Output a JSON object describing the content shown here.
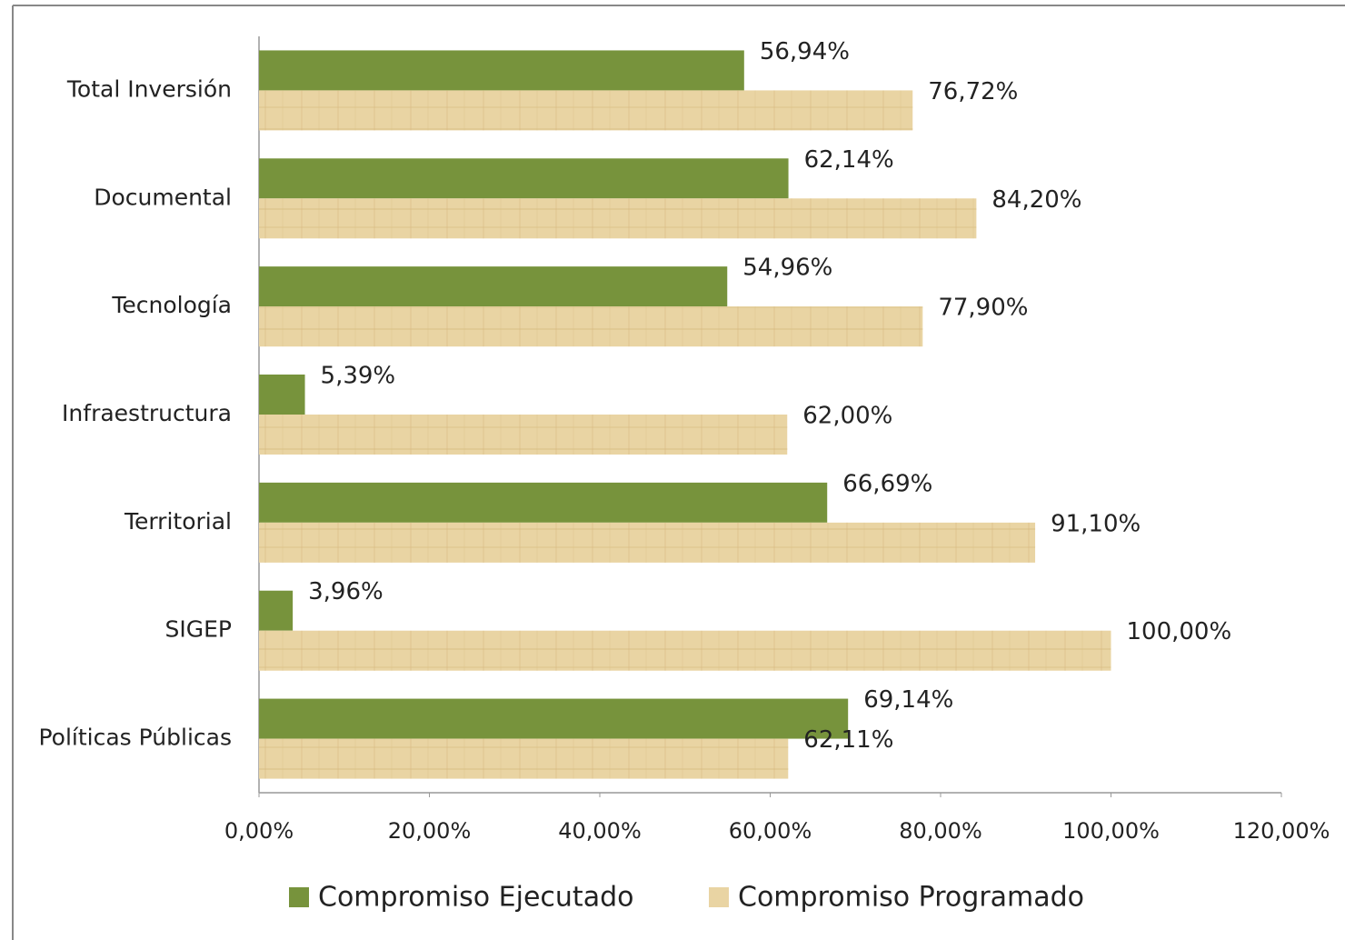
{
  "chart_data": {
    "type": "hbar",
    "categories": [
      "Total Inversión",
      "Documental",
      "Tecnología",
      "Infraestructura",
      "Territorial",
      "SIGEP",
      "Políticas Públicas"
    ],
    "series": [
      {
        "name": "Compromiso Ejecutado",
        "color": "#77933c",
        "values": [
          56.94,
          62.14,
          54.96,
          5.39,
          66.69,
          3.96,
          69.14
        ],
        "value_labels": [
          "56,94%",
          "62,14%",
          "54,96%",
          "5,39%",
          "66,69%",
          "3,96%",
          "69,14%"
        ]
      },
      {
        "name": "Compromiso Programado",
        "color": "#e9d4a3",
        "values": [
          76.72,
          84.2,
          77.9,
          62.0,
          91.1,
          100.0,
          62.11
        ],
        "value_labels": [
          "76,72%",
          "84,20%",
          "77,90%",
          "62,00%",
          "91,10%",
          "100,00%",
          "62,11%"
        ]
      }
    ],
    "xlim": [
      0,
      120
    ],
    "xticks": [
      {
        "value": 0,
        "label": "0,00%"
      },
      {
        "value": 20,
        "label": "20,00%"
      },
      {
        "value": 40,
        "label": "40,00%"
      },
      {
        "value": 60,
        "label": "60,00%"
      },
      {
        "value": 80,
        "label": "80,00%"
      },
      {
        "value": 100,
        "label": "100,00%"
      },
      {
        "value": 120,
        "label": "120,00%"
      }
    ],
    "legend": "bottom"
  }
}
